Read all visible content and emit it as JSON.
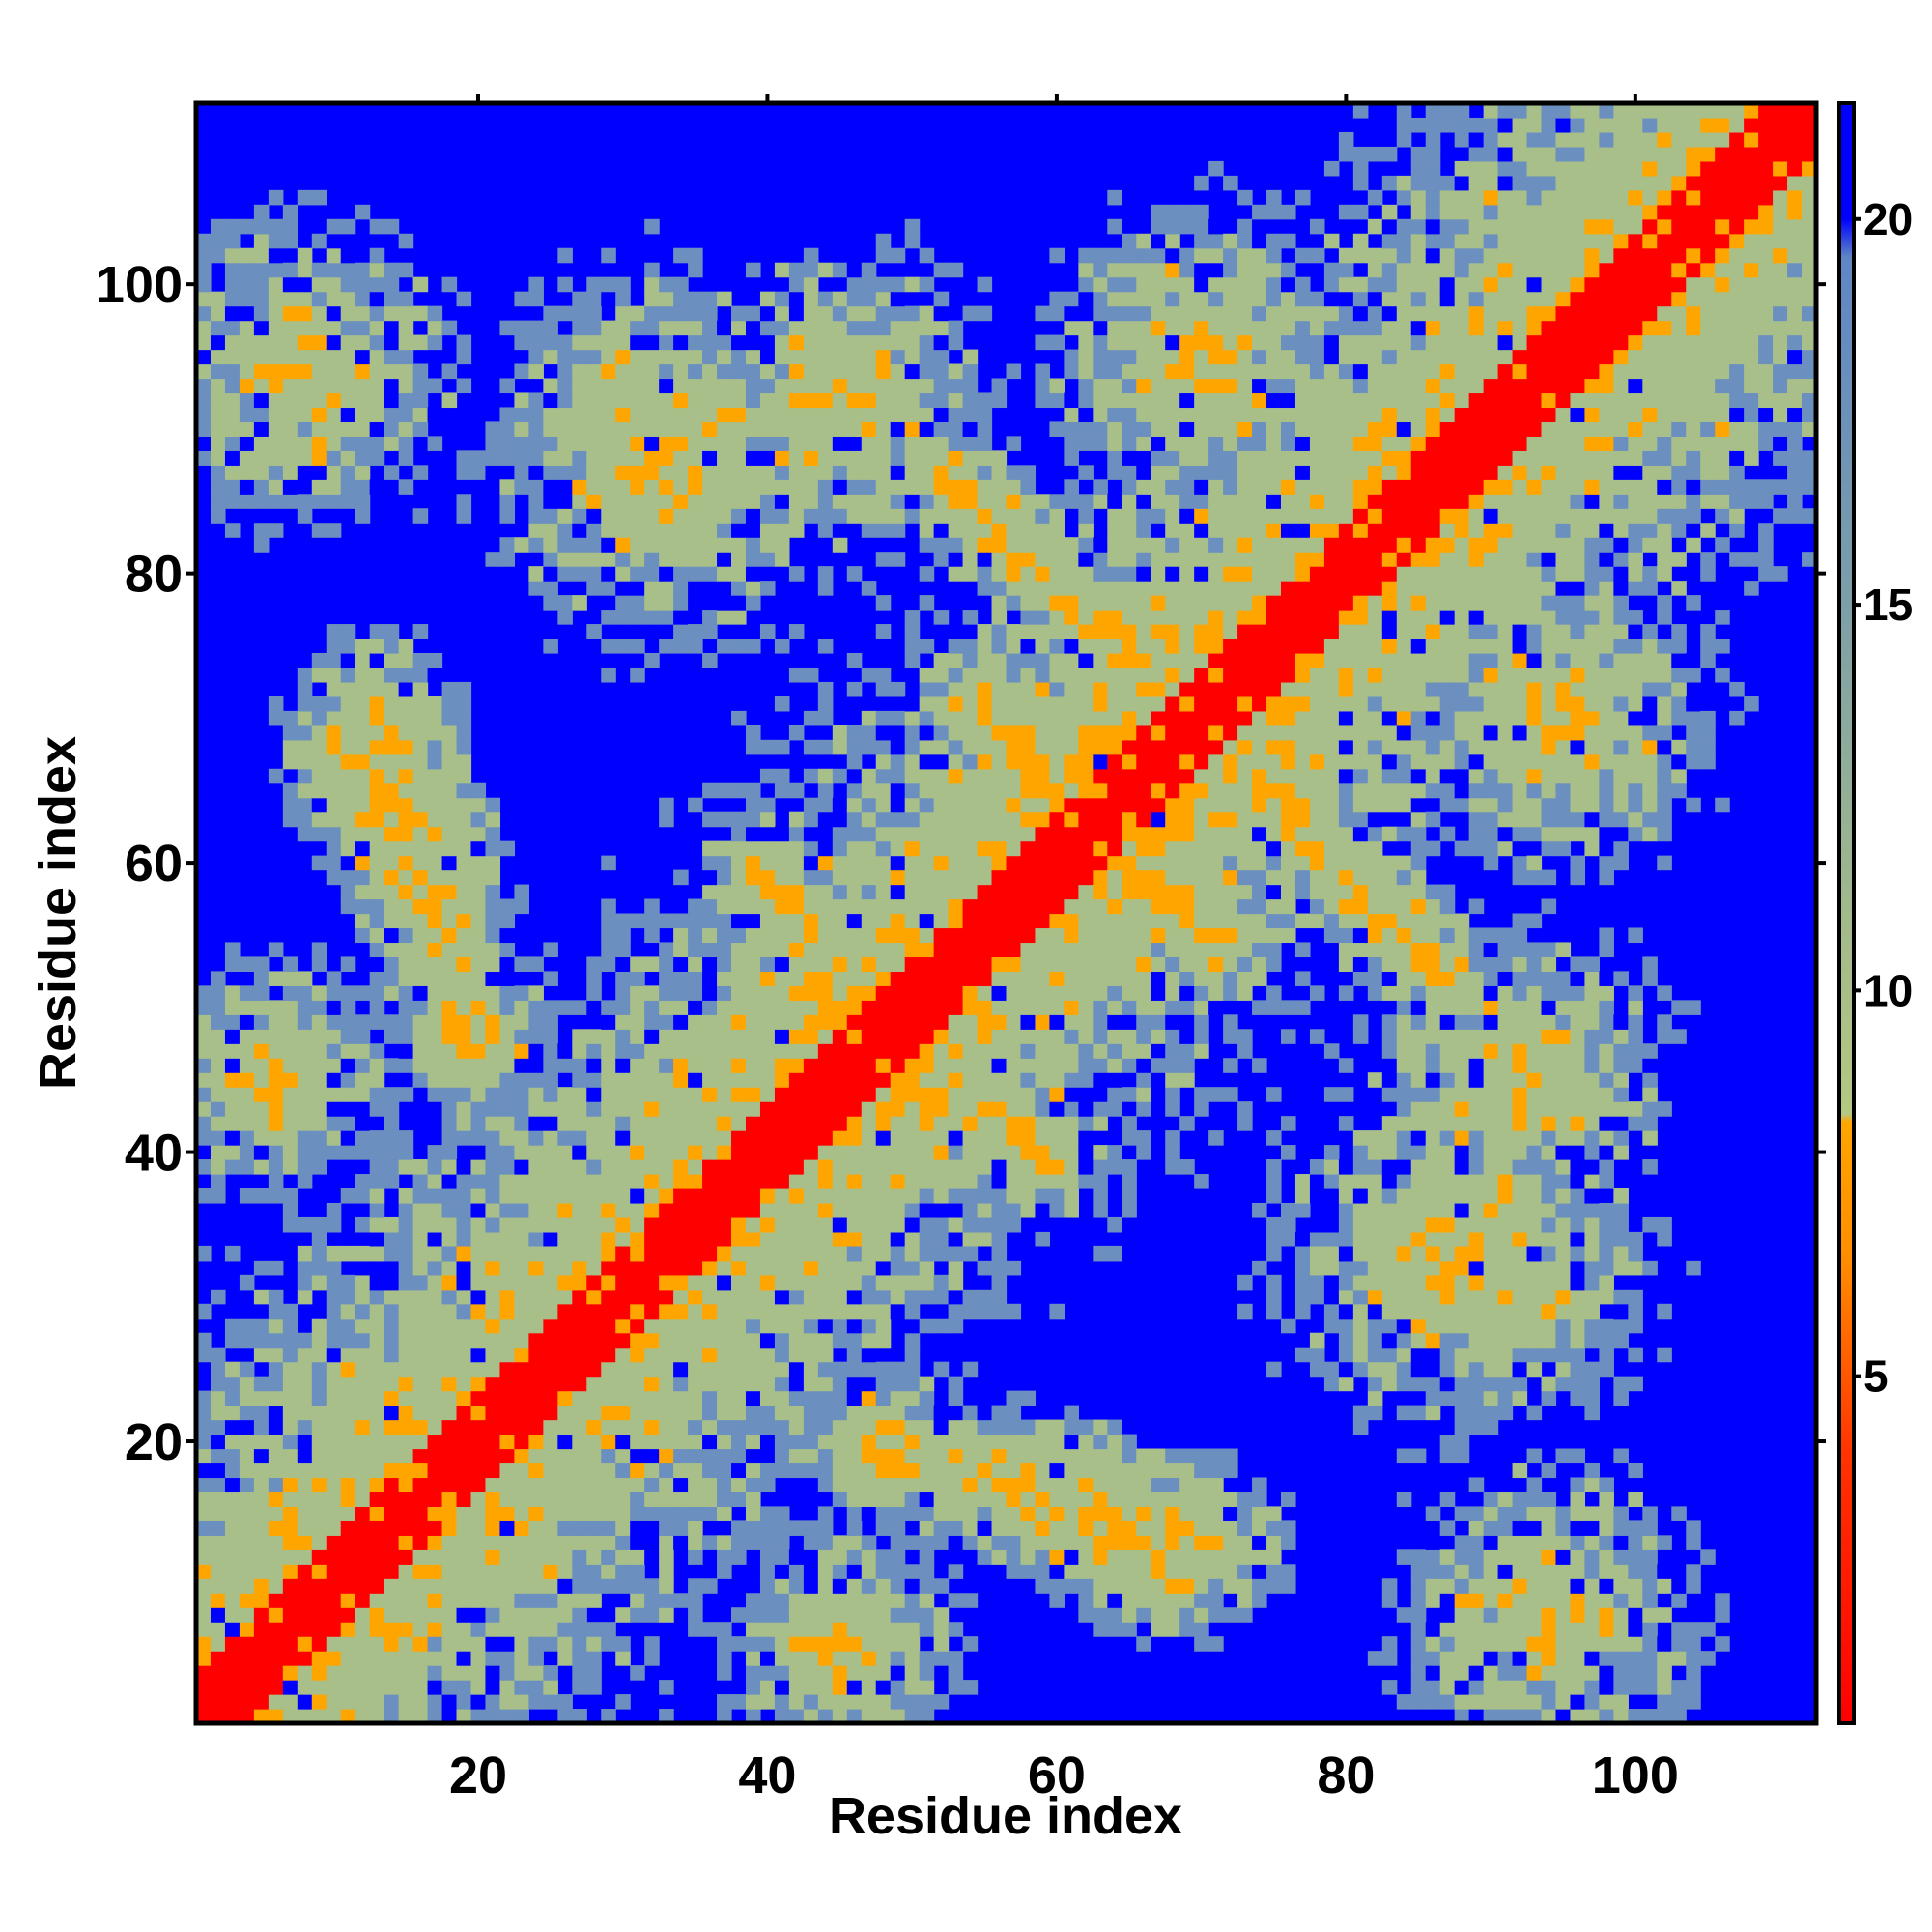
{
  "chart_data": {
    "type": "heatmap",
    "title": "",
    "xlabel": "Residue index",
    "ylabel": "Residue index",
    "n_residues": 112,
    "xlim": [
      1,
      112
    ],
    "ylim": [
      1,
      112
    ],
    "x_ticks": [
      20,
      40,
      60,
      80,
      100
    ],
    "y_ticks": [
      20,
      40,
      60,
      80,
      100
    ],
    "colorbar": {
      "ticks": [
        5,
        10,
        15,
        20
      ],
      "range": [
        0.5,
        21.5
      ],
      "placement": "right",
      "stops": [
        {
          "value": 0.5,
          "color": "#ff0000"
        },
        {
          "value": 4.0,
          "color": "#ff3300"
        },
        {
          "value": 6.5,
          "color": "#ff8c00"
        },
        {
          "value": 8.3,
          "color": "#ffa500"
        },
        {
          "value": 8.4,
          "color": "#b4c882"
        },
        {
          "value": 11.0,
          "color": "#a2b98c"
        },
        {
          "value": 15.0,
          "color": "#7d9fa8"
        },
        {
          "value": 19.5,
          "color": "#5f86c4"
        },
        {
          "value": 20.0,
          "color": "#0000ff"
        },
        {
          "value": 21.5,
          "color": "#0000ff"
        }
      ]
    },
    "colors": {
      "background": "#0000ff",
      "near": "#ff0000",
      "mid": "#ffa500",
      "far": "#a9bf8a",
      "outer": "#6b8fbf"
    },
    "features": [
      {
        "type": "diagonal",
        "halfwidth": 11
      },
      {
        "type": "antidiagonal",
        "sum": 139,
        "range": [
          52,
          86
        ],
        "halfwidth": 4
      },
      {
        "type": "antidiagonal",
        "sum": 126,
        "range": [
          55,
          71
        ],
        "halfwidth": 5
      },
      {
        "type": "segment",
        "start": [
          20,
          47
        ],
        "end": [
          13,
          70
        ],
        "halfwidth": 5
      },
      {
        "type": "segment",
        "start": [
          47,
          20
        ],
        "end": [
          70,
          13
        ],
        "halfwidth": 5
      },
      {
        "type": "segment",
        "start": [
          54,
          19
        ],
        "end": [
          68,
          10
        ],
        "halfwidth": 4
      },
      {
        "type": "segment",
        "start": [
          19,
          54
        ],
        "end": [
          10,
          68
        ],
        "halfwidth": 4
      },
      {
        "type": "segment",
        "start": [
          43,
          52
        ],
        "end": [
          58,
          40
        ],
        "halfwidth": 5
      },
      {
        "type": "segment",
        "start": [
          52,
          43
        ],
        "end": [
          40,
          58
        ],
        "halfwidth": 5
      },
      {
        "type": "blob",
        "center": [
          8,
          94
        ],
        "radius": 9
      },
      {
        "type": "blob",
        "center": [
          94,
          8
        ],
        "radius": 9
      },
      {
        "type": "blob",
        "center": [
          33,
          88
        ],
        "radius": 11
      },
      {
        "type": "blob",
        "center": [
          88,
          33
        ],
        "radius": 11
      },
      {
        "type": "blob",
        "center": [
          70,
          95
        ],
        "radius": 9
      },
      {
        "type": "blob",
        "center": [
          95,
          70
        ],
        "radius": 9
      },
      {
        "type": "blob",
        "center": [
          6,
          45
        ],
        "radius": 7
      },
      {
        "type": "blob",
        "center": [
          45,
          6
        ],
        "radius": 7
      },
      {
        "type": "blob",
        "center": [
          92,
          45
        ],
        "radius": 9
      },
      {
        "type": "blob",
        "center": [
          45,
          92
        ],
        "radius": 9
      }
    ]
  }
}
